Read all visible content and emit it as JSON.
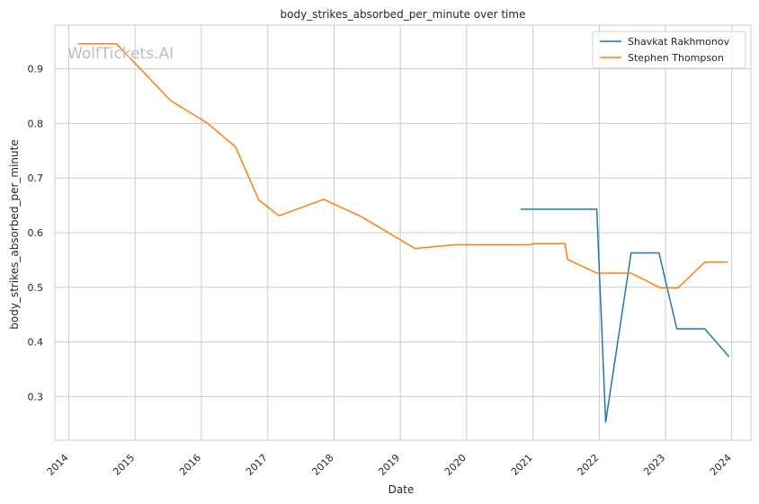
{
  "chart_data": {
    "type": "line",
    "title": "body_strikes_absorbed_per_minute over time",
    "xlabel": "Date",
    "ylabel": "body_strikes_absorbed_per_minute",
    "watermark": "WolfTickets.AI",
    "grid": true,
    "legend_position": "top-right",
    "x_ticks": [
      "2014",
      "2015",
      "2016",
      "2017",
      "2018",
      "2019",
      "2020",
      "2021",
      "2022",
      "2023",
      "2024"
    ],
    "y_ticks": [
      "0.3",
      "0.4",
      "0.5",
      "0.6",
      "0.7",
      "0.8",
      "0.9"
    ],
    "xlim": [
      "2013-10-16",
      "2024-04-15"
    ],
    "ylim": [
      0.22,
      0.98
    ],
    "series": [
      {
        "name": "Shavkat Rakhmonov",
        "color": "#1f77b4",
        "points": [
          [
            "2020-10-24",
            0.643
          ],
          [
            "2021-12-18",
            0.643
          ],
          [
            "2022-02-05",
            0.253
          ],
          [
            "2022-06-25",
            0.563
          ],
          [
            "2022-11-26",
            0.563
          ],
          [
            "2023-03-04",
            0.424
          ],
          [
            "2023-08-05",
            0.424
          ],
          [
            "2023-12-16",
            0.373
          ]
        ]
      },
      {
        "name": "Stephen Thompson",
        "color": "#ff7f0e",
        "points": [
          [
            "2014-02-22",
            0.946
          ],
          [
            "2014-09-20",
            0.946
          ],
          [
            "2015-07-15",
            0.842
          ],
          [
            "2016-02-06",
            0.8
          ],
          [
            "2016-07-07",
            0.757
          ],
          [
            "2016-11-12",
            0.66
          ],
          [
            "2017-03-04",
            0.631
          ],
          [
            "2017-11-04",
            0.661
          ],
          [
            "2018-05-27",
            0.63
          ],
          [
            "2019-03-23",
            0.571
          ],
          [
            "2019-11-02",
            0.578
          ],
          [
            "2020-12-19",
            0.578
          ],
          [
            "2021-01-01",
            0.58
          ],
          [
            "2021-06-26",
            0.58
          ],
          [
            "2021-07-10",
            0.551
          ],
          [
            "2021-12-18",
            0.526
          ],
          [
            "2022-06-25",
            0.526
          ],
          [
            "2022-12-03",
            0.499
          ],
          [
            "2023-03-11",
            0.499
          ],
          [
            "2023-08-05",
            0.546
          ],
          [
            "2023-12-09",
            0.546
          ]
        ]
      }
    ]
  }
}
